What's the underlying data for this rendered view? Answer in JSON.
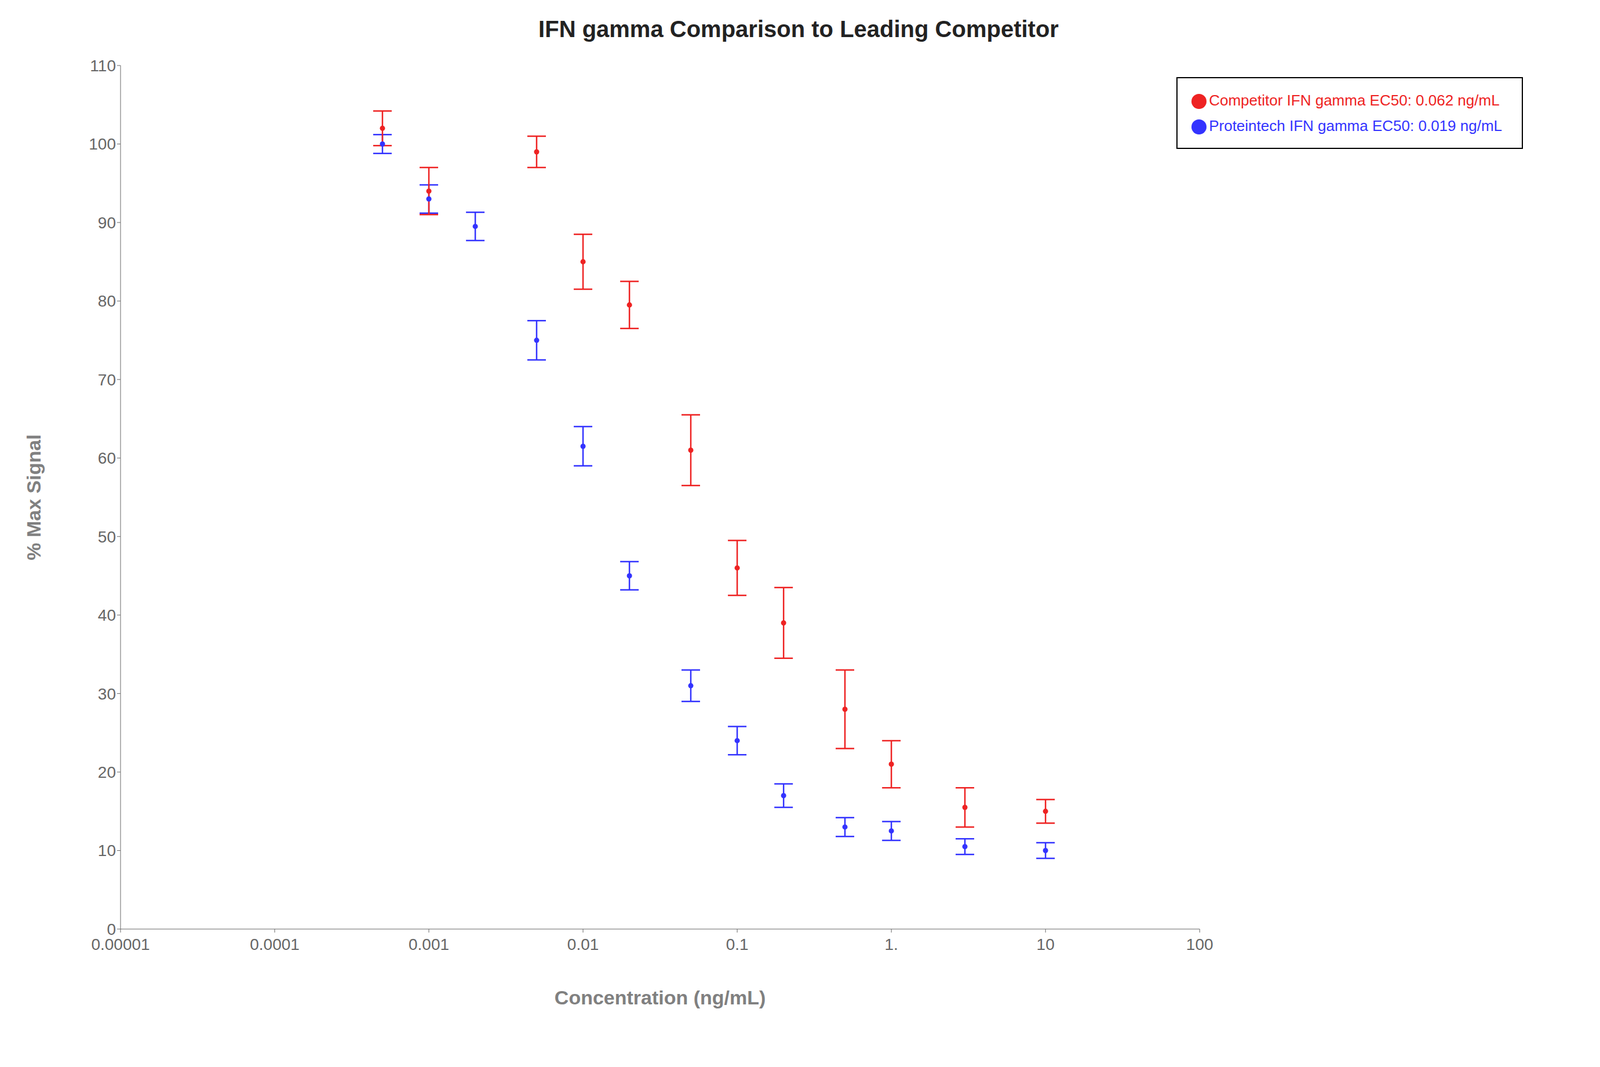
{
  "chart_data": {
    "type": "scatter",
    "title": "IFN gamma Comparison to Leading Competitor",
    "x_label": "Concentration (ng/mL)",
    "y_label": "% Max Signal",
    "log": "x",
    "xlim": [
      1e-05,
      100
    ],
    "ylim": [
      0,
      110
    ],
    "xticks": [
      1e-05,
      0.0001,
      0.001,
      0.01,
      0.1,
      {
        "value": 1,
        "label": "1."
      },
      10,
      100
    ],
    "yticks": [
      0,
      10,
      20,
      30,
      40,
      50,
      60,
      70,
      80,
      90,
      100,
      110
    ],
    "grid": false,
    "legend": "upper right",
    "series": [
      {
        "name": "Proteintech IFN gamma EC50: 0.019 ng/mL",
        "color": "#3333FF",
        "marker": "o",
        "x": [
          0.0005,
          0.001,
          0.002,
          0.005,
          0.01,
          0.02,
          0.05,
          0.1,
          0.2,
          0.5,
          1.0,
          3.0,
          10.0
        ],
        "values": [
          100.0,
          93.0,
          89.5,
          75.0,
          61.5,
          45.0,
          31.0,
          24.0,
          17.0,
          13.0,
          12.5,
          10.5,
          10.0
        ],
        "y_err": [
          1.2,
          1.8,
          1.8,
          2.5,
          2.5,
          1.8,
          2.0,
          1.8,
          1.5,
          1.2,
          1.2,
          1.0,
          1.0
        ]
      },
      {
        "name": "Competitor IFN gamma EC50: 0.062 ng/mL",
        "color": "#EE2222",
        "marker": "o",
        "x": [
          0.0005,
          0.001,
          0.005,
          0.01,
          0.02,
          0.05,
          0.1,
          0.2,
          0.5,
          1.0,
          3.0,
          10.0
        ],
        "values": [
          102.0,
          94.0,
          99.0,
          85.0,
          79.5,
          61.0,
          46.0,
          39.0,
          28.0,
          21.0,
          15.5,
          15.0
        ],
        "y_err": [
          2.2,
          3.0,
          2.0,
          3.5,
          3.0,
          4.5,
          3.5,
          4.5,
          5.0,
          3.0,
          2.5,
          1.5
        ]
      }
    ]
  }
}
